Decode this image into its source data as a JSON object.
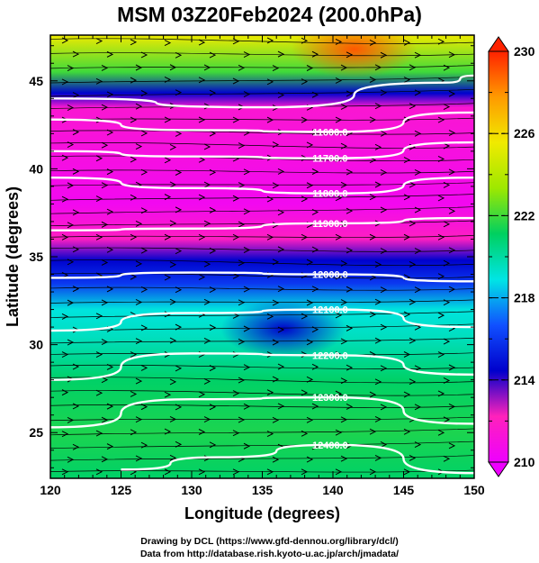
{
  "title": "MSM 03Z20Feb2024 (200.0hPa)",
  "credits": [
    "Drawing by DCL (https://www.gfd-dennou.org/library/dcl/)",
    "Data from http://database.rish.kyoto-u.ac.jp/arch/jmadata/"
  ],
  "chart_data": {
    "type": "heatmap",
    "title": "MSM 03Z20Feb2024 (200.0hPa)",
    "xlabel": "Longitude (degrees)",
    "ylabel": "Latitude  (degrees)",
    "xlim": [
      120,
      150
    ],
    "ylim": [
      22.4,
      47.6
    ],
    "xticks": [
      120,
      125,
      130,
      135,
      140,
      145,
      150
    ],
    "yticks": [
      25,
      30,
      35,
      40,
      45
    ],
    "colorbar": {
      "min": 210,
      "max": 230,
      "ticks": [
        210,
        214,
        218,
        222,
        226,
        230
      ],
      "colors": [
        "#ee00ff",
        "#ff22bb",
        "#0000cc",
        "#1050ff",
        "#00e5e5",
        "#00d060",
        "#9ee800",
        "#f0ea00",
        "#ff9a00",
        "#ff2200"
      ]
    },
    "field_bands": [
      {
        "lat": 47.6,
        "value": 225.5
      },
      {
        "lat": 45.5,
        "value": 222.0
      },
      {
        "lat": 44.3,
        "value": 214.5
      },
      {
        "lat": 43.5,
        "value": 211.5
      },
      {
        "lat": 38.0,
        "value": 210.5
      },
      {
        "lat": 36.0,
        "value": 212.0
      },
      {
        "lat": 34.8,
        "value": 214.5
      },
      {
        "lat": 33.5,
        "value": 216.0
      },
      {
        "lat": 32.0,
        "value": 219.0
      },
      {
        "lat": 30.5,
        "value": 219.5
      },
      {
        "lat": 28.0,
        "value": 221.0
      },
      {
        "lat": 25.0,
        "value": 221.5
      },
      {
        "lat": 22.4,
        "value": 221.0
      }
    ],
    "field_features": [
      {
        "lon": 141.5,
        "lat": 46.8,
        "value": 229.0
      },
      {
        "lon": 136.5,
        "lat": 30.9,
        "value": 214.5
      }
    ],
    "contours": [
      {
        "label": "11600.0",
        "label_lon": 141.0,
        "points": [
          [
            120,
            42.8
          ],
          [
            130,
            42.2
          ],
          [
            140,
            42.1
          ],
          [
            150,
            43.2
          ]
        ]
      },
      {
        "label": "11700.0",
        "label_lon": 141.0,
        "points": [
          [
            120,
            41.0
          ],
          [
            130,
            40.7
          ],
          [
            140,
            40.6
          ],
          [
            150,
            41.5
          ]
        ]
      },
      {
        "label": "11800.0",
        "label_lon": 141.0,
        "points": [
          [
            120,
            39.5
          ],
          [
            130,
            38.9
          ],
          [
            140,
            38.6
          ],
          [
            150,
            39.5
          ]
        ]
      },
      {
        "label": "11900.0",
        "label_lon": 141.0,
        "points": [
          [
            120,
            36.5
          ],
          [
            130,
            36.6
          ],
          [
            140,
            36.9
          ],
          [
            150,
            37.2
          ]
        ]
      },
      {
        "label": "12000.0",
        "label_lon": 141.0,
        "points": [
          [
            120,
            33.8
          ],
          [
            130,
            34.1
          ],
          [
            140,
            34.0
          ],
          [
            150,
            33.6
          ]
        ]
      },
      {
        "label": "12100.0",
        "label_lon": 141.0,
        "points": [
          [
            120,
            30.8
          ],
          [
            130,
            31.8
          ],
          [
            140,
            32.0
          ],
          [
            150,
            31.0
          ]
        ]
      },
      {
        "label": "12200.0",
        "label_lon": 141.0,
        "points": [
          [
            120,
            28.0
          ],
          [
            130,
            29.5
          ],
          [
            140,
            29.4
          ],
          [
            150,
            28.3
          ]
        ]
      },
      {
        "label": "12300.0",
        "label_lon": 141.0,
        "points": [
          [
            120,
            25.3
          ],
          [
            130,
            26.9
          ],
          [
            140,
            27.0
          ],
          [
            150,
            25.5
          ]
        ]
      },
      {
        "label": "12400.0",
        "label_lon": 141.0,
        "points": [
          [
            125,
            22.9
          ],
          [
            132,
            23.6
          ],
          [
            140,
            24.3
          ],
          [
            150,
            22.7
          ]
        ]
      }
    ],
    "unlabeled_contours": [
      {
        "points": [
          [
            120,
            44.0
          ],
          [
            135,
            43.5
          ],
          [
            148,
            44.9
          ],
          [
            150,
            45.3
          ]
        ]
      }
    ],
    "wind_vectors": {
      "style": "streamline arrows",
      "direction": "west-to-east"
    }
  }
}
